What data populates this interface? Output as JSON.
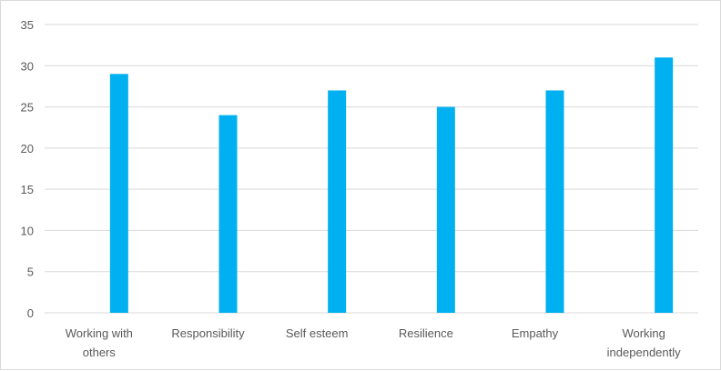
{
  "chart_data": {
    "type": "bar",
    "title": "",
    "xlabel": "",
    "ylabel": "",
    "categories": [
      [
        "Working with",
        "others"
      ],
      [
        "Responsibility"
      ],
      [
        "Self esteem"
      ],
      [
        "Resilience"
      ],
      [
        "Empathy"
      ],
      [
        "Working",
        "independently"
      ]
    ],
    "values": [
      29,
      24,
      27,
      25,
      27,
      31
    ],
    "ylim": [
      0,
      35
    ],
    "yticks": [
      0,
      5,
      10,
      15,
      20,
      25,
      30,
      35
    ],
    "grid": true,
    "legend": "none",
    "colors": {
      "bar": "#00b0f0",
      "grid": "#d9d9d9",
      "axis": "#d9d9d9",
      "text": "#595959"
    }
  }
}
